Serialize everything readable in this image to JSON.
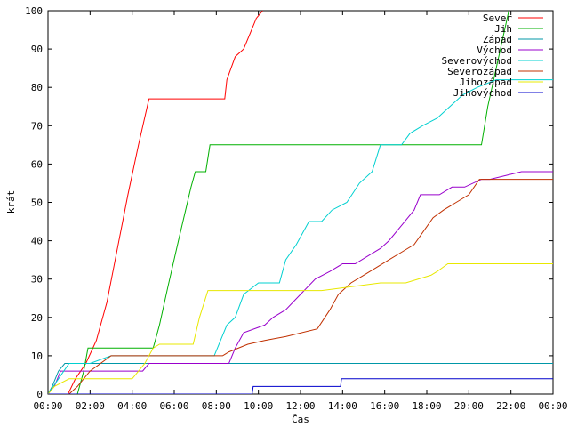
{
  "chart_data": {
    "type": "line",
    "xlabel": "Čas",
    "ylabel": "krát",
    "xlim": [
      0,
      24
    ],
    "ylim": [
      0,
      100
    ],
    "x_ticks": [
      "00:00",
      "02:00",
      "04:00",
      "06:00",
      "08:00",
      "10:00",
      "12:00",
      "14:00",
      "16:00",
      "18:00",
      "20:00",
      "22:00",
      "00:00"
    ],
    "y_ticks": [
      0,
      10,
      20,
      30,
      40,
      50,
      60,
      70,
      80,
      90,
      100
    ],
    "grid": false,
    "legend_position": "top-right",
    "series": [
      {
        "name": "Sever",
        "color": "#ff0000",
        "x": [
          0,
          0.95,
          1.3,
          1.8,
          2.3,
          2.8,
          3.3,
          3.8,
          4.3,
          4.8,
          5.0,
          8.4,
          8.5,
          8.9,
          9.3,
          9.6,
          9.9,
          10.2
        ],
        "y": [
          0,
          0,
          4,
          8,
          14,
          24,
          38,
          52,
          65,
          77,
          77,
          77,
          82,
          88,
          90,
          94,
          98,
          100
        ]
      },
      {
        "name": "Jih",
        "color": "#00b000",
        "x": [
          0,
          1.4,
          1.7,
          1.9,
          5.0,
          5.3,
          5.7,
          6.2,
          6.8,
          7.0,
          7.5,
          7.7,
          20.6,
          20.9,
          21.3,
          21.9
        ],
        "y": [
          0,
          0,
          6,
          12,
          12,
          18,
          28,
          40,
          54,
          58,
          58,
          65,
          65,
          75,
          85,
          100
        ]
      },
      {
        "name": "Západ",
        "color": "#0097a7",
        "x": [
          0,
          0.2,
          0.5,
          0.8,
          24
        ],
        "y": [
          0,
          2,
          6,
          8,
          8
        ]
      },
      {
        "name": "Východ",
        "color": "#9900cc",
        "x": [
          0,
          0.3,
          0.6,
          2.0,
          3.5,
          4.5,
          4.8,
          8.6,
          8.9,
          9.3,
          10.3,
          10.7,
          11.3,
          12.0,
          12.7,
          13.4,
          14.0,
          14.6,
          15.2,
          15.8,
          16.2,
          16.8,
          17.4,
          17.7,
          18.0,
          18.6,
          19.2,
          19.8,
          20.6,
          21.0,
          22.5,
          24
        ],
        "y": [
          0,
          2,
          6,
          6,
          6,
          6,
          8,
          8,
          12,
          16,
          18,
          20,
          22,
          26,
          30,
          32,
          34,
          34,
          36,
          38,
          40,
          44,
          48,
          52,
          52,
          52,
          54,
          54,
          56,
          56,
          58,
          58
        ]
      },
      {
        "name": "Severovýchod",
        "color": "#00d0d0",
        "x": [
          0,
          0.5,
          1.0,
          2.0,
          3.0,
          4.5,
          5.2,
          6.5,
          6.9,
          7.9,
          8.2,
          8.5,
          8.9,
          9.3,
          10.0,
          11.0,
          11.3,
          11.8,
          12.4,
          13.0,
          13.5,
          14.2,
          14.8,
          15.4,
          15.8,
          16.8,
          17.2,
          17.8,
          18.5,
          19.3,
          19.7,
          20.4,
          21.3,
          23.8,
          24
        ],
        "y": [
          0,
          4,
          8,
          8,
          10,
          10,
          10,
          10,
          10,
          10,
          14,
          18,
          20,
          26,
          29,
          29,
          35,
          39,
          45,
          45,
          48,
          50,
          55,
          58,
          65,
          65,
          68,
          70,
          72,
          76,
          78,
          80,
          82,
          82,
          82
        ]
      },
      {
        "name": "Severozápad",
        "color": "#c03000",
        "x": [
          0,
          1.0,
          1.4,
          2.0,
          3.0,
          8.3,
          8.6,
          9.5,
          10.3,
          11.3,
          12.8,
          13.4,
          13.8,
          14.4,
          15.0,
          15.6,
          16.2,
          16.8,
          17.4,
          18.3,
          18.8,
          19.4,
          20.0,
          20.5,
          24
        ],
        "y": [
          0,
          0,
          2,
          6,
          10,
          10,
          11,
          13,
          14,
          15,
          17,
          22,
          26,
          29,
          31,
          33,
          35,
          37,
          39,
          46,
          48,
          50,
          52,
          56,
          56
        ]
      },
      {
        "name": "Jihozápad",
        "color": "#e8e800",
        "x": [
          0,
          0.3,
          1.0,
          2.0,
          4.0,
          4.6,
          5.0,
          5.3,
          6.9,
          7.2,
          7.6,
          8.5,
          10.0,
          13.0,
          15.8,
          16.2,
          17.0,
          18.2,
          18.5,
          19.0,
          24
        ],
        "y": [
          0,
          2,
          4,
          4,
          4,
          8,
          12,
          13,
          13,
          20,
          27,
          27,
          27,
          27,
          29,
          29,
          29,
          31,
          32,
          34,
          34
        ]
      },
      {
        "name": "Jihovýchod",
        "color": "#0000cc",
        "x": [
          0,
          9.7,
          9.75,
          13.9,
          13.95,
          24
        ],
        "y": [
          0,
          0,
          2,
          2,
          4,
          4
        ]
      }
    ]
  }
}
